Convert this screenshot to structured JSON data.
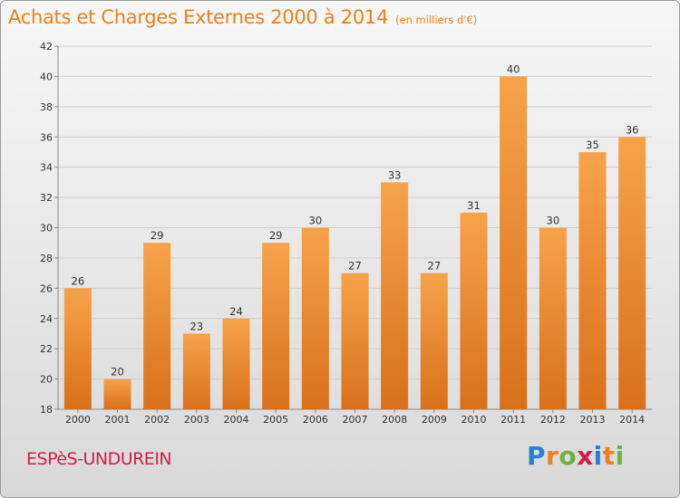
{
  "header": {
    "title": "Achats et Charges Externes 2000 à 2014",
    "unit": "(en milliers d'€)"
  },
  "footer": {
    "commune": "ESPèS-UNDUREIN",
    "logo_letters": [
      {
        "ch": "P",
        "color": "#2a7fd4"
      },
      {
        "ch": "r",
        "color": "#f07f1c"
      },
      {
        "ch": "o",
        "color": "#6cb33f"
      },
      {
        "ch": "x",
        "color": "#d21e4c"
      },
      {
        "ch": "i",
        "color": "#2a7fd4"
      },
      {
        "ch": "t",
        "color": "#f07f1c"
      },
      {
        "ch": "i",
        "color": "#6cb33f"
      }
    ]
  },
  "chart_data": {
    "type": "bar",
    "title": "Achats et Charges Externes 2000 à 2014",
    "subtitle": "(en milliers d'€)",
    "xlabel": "",
    "ylabel": "",
    "categories": [
      "2000",
      "2001",
      "2002",
      "2003",
      "2004",
      "2005",
      "2006",
      "2007",
      "2008",
      "2009",
      "2010",
      "2011",
      "2012",
      "2013",
      "2014"
    ],
    "values": [
      26,
      20,
      29,
      23,
      24,
      29,
      30,
      27,
      33,
      27,
      31,
      40,
      30,
      35,
      36
    ],
    "ylim": [
      18,
      42
    ],
    "yticks": [
      18,
      20,
      22,
      24,
      26,
      28,
      30,
      32,
      34,
      36,
      38,
      40,
      42
    ],
    "grid": true,
    "bar_color_top": "#f7a24a",
    "bar_color_bottom": "#d9701a",
    "title_color": "#f07f1c",
    "commune_color": "#d21e4c"
  }
}
